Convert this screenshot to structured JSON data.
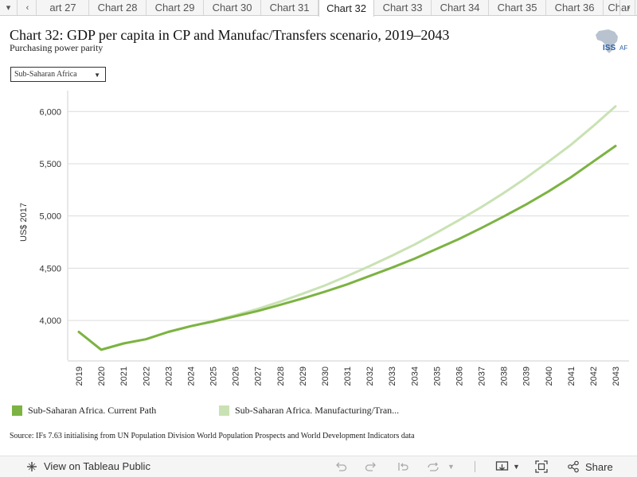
{
  "tabs": {
    "items": [
      "art 27",
      "Chart 28",
      "Chart 29",
      "Chart 30",
      "Chart 31",
      "Chart 32",
      "Chart 33",
      "Chart 34",
      "Chart 35",
      "Chart 36",
      "Char"
    ],
    "active_index": 5
  },
  "header": {
    "title": "Chart 32: GDP per capita in CP and Manufac/Transfers scenario, 2019–2043",
    "subtitle": "Purchasing power parity",
    "logo_text": "ISS AF"
  },
  "filter": {
    "selected": "Sub-Saharan Africa"
  },
  "chart_data": {
    "type": "line",
    "x": [
      2019,
      2020,
      2021,
      2022,
      2023,
      2024,
      2025,
      2026,
      2027,
      2028,
      2029,
      2030,
      2031,
      2032,
      2033,
      2034,
      2035,
      2036,
      2037,
      2038,
      2039,
      2040,
      2041,
      2042,
      2043
    ],
    "xticks": [
      "2019",
      "2020",
      "2021",
      "2022",
      "2023",
      "2024",
      "2025",
      "2026",
      "2027",
      "2028",
      "2029",
      "2030",
      "2031",
      "2032",
      "2033",
      "2034",
      "2035",
      "2036",
      "2037",
      "2038",
      "2039",
      "2040",
      "2041",
      "2042",
      "2043"
    ],
    "series": [
      {
        "name": "Sub-Saharan Africa. Current Path",
        "color": "#7cb342",
        "values": [
          3890,
          3720,
          3780,
          3820,
          3890,
          3945,
          3990,
          4040,
          4090,
          4150,
          4210,
          4275,
          4345,
          4425,
          4505,
          4590,
          4685,
          4780,
          4885,
          4995,
          5110,
          5235,
          5370,
          5520,
          5670
        ]
      },
      {
        "name": "Sub-Saharan Africa. Manufacturing/Tran...",
        "color": "#c9e2b3",
        "values": [
          3890,
          3720,
          3780,
          3820,
          3890,
          3945,
          3995,
          4050,
          4110,
          4180,
          4255,
          4335,
          4425,
          4520,
          4620,
          4725,
          4840,
          4960,
          5085,
          5220,
          5365,
          5520,
          5680,
          5860,
          6050
        ]
      }
    ],
    "ylabel": "US$ 2017",
    "yticks": [
      4000,
      4500,
      5000,
      5500,
      6000
    ],
    "ytick_labels": [
      "4,000",
      "4,500",
      "5,000",
      "5,500",
      "6,000"
    ],
    "ylim": [
      3620,
      6200
    ],
    "grid": true,
    "legend_position": "bottom"
  },
  "source": "Source: IFs 7.63 initialising from UN Population Division World Population Prospects and World Development Indicators data",
  "footer": {
    "view_label": "View on Tableau Public",
    "share_label": "Share"
  },
  "icons": {
    "dropdown": "chevron-down-icon",
    "tab_prev": "chevron-left-icon",
    "tab_next": "chevron-right-icon",
    "view": "tableau-icon",
    "undo": "undo-icon",
    "redo": "redo-icon",
    "revert": "revert-icon",
    "refresh": "refresh-icon",
    "download": "download-icon",
    "fullscreen": "fullscreen-icon",
    "share": "share-icon"
  }
}
